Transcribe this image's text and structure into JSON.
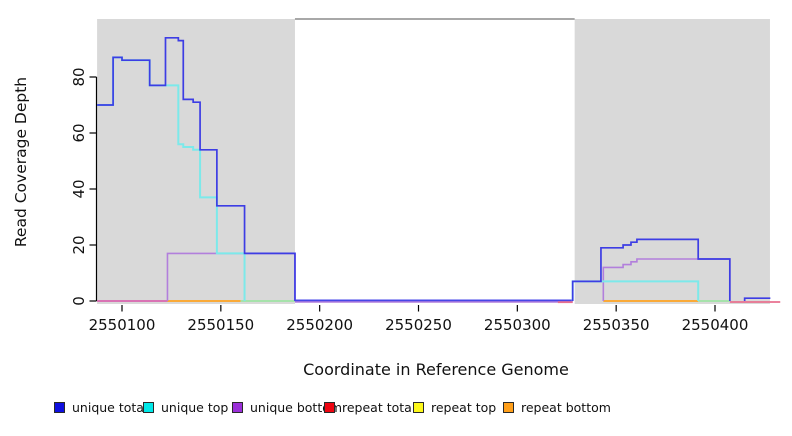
{
  "figure": {
    "xlabel": "Coordinate in Reference Genome",
    "ylabel": "Read Coverage Depth"
  },
  "chart_data": {
    "type": "line",
    "step": true,
    "title": "",
    "xlabel": "Coordinate in Reference Genome",
    "ylabel": "Read Coverage Depth",
    "xlim": [
      2550087.4,
      2550433
    ],
    "ylim": [
      0,
      101
    ],
    "x_ticks": [
      2550100,
      2550150,
      2550200,
      2550250,
      2550300,
      2550350,
      2550400
    ],
    "y_ticks": [
      0,
      20,
      40,
      60,
      80
    ],
    "grid": false,
    "legend_position": "bottom",
    "shaded_regions": [
      {
        "x1": 2550087.4,
        "x2": 2550187.5,
        "color": "#d9d9d9"
      },
      {
        "x1": 2550329.0,
        "x2": 2550427.8,
        "color": "#d9d9d9"
      }
    ],
    "series": [
      {
        "name": "unique total",
        "color": "#3d3de4",
        "segments": [
          [
            2550087.4,
            2550095.5,
            70
          ],
          [
            2550095.5,
            2550100,
            87
          ],
          [
            2550100,
            2550114,
            86
          ],
          [
            2550114,
            2550122,
            77
          ],
          [
            2550122,
            2550128.5,
            94
          ],
          [
            2550128.5,
            2550131,
            93
          ],
          [
            2550131,
            2550136,
            72
          ],
          [
            2550136,
            2550139.5,
            71
          ],
          [
            2550139.5,
            2550148,
            54
          ],
          [
            2550148,
            2550162,
            34
          ],
          [
            2550162,
            2550187.5,
            17
          ],
          [
            2550187.5,
            2550328,
            0
          ],
          [
            2550328,
            2550342.3,
            7
          ],
          [
            2550342.3,
            2550353.5,
            19
          ],
          [
            2550353.5,
            2550357.5,
            20
          ],
          [
            2550357.5,
            2550360.5,
            21
          ],
          [
            2550360.5,
            2550391.5,
            22
          ],
          [
            2550391.5,
            2550407.5,
            15
          ],
          [
            2550407.5,
            2550415,
            0
          ],
          [
            2550415,
            2550428,
            1
          ]
        ]
      },
      {
        "name": "unique top",
        "color": "#7ce9ea",
        "segments": [
          [
            2550087.4,
            2550095.5,
            70
          ],
          [
            2550095.5,
            2550100,
            87
          ],
          [
            2550100,
            2550114,
            86
          ],
          [
            2550114,
            2550128.5,
            77
          ],
          [
            2550128.5,
            2550131,
            56
          ],
          [
            2550131,
            2550136,
            55
          ],
          [
            2550136,
            2550139.5,
            54
          ],
          [
            2550139.5,
            2550148,
            37
          ],
          [
            2550148,
            2550162,
            17
          ],
          [
            2550162,
            2550328,
            0
          ],
          [
            2550328,
            2550391.5,
            7
          ],
          [
            2550391.5,
            2550433,
            0
          ]
        ]
      },
      {
        "name": "unique bottom",
        "color": "#b27fdc",
        "segments": [
          [
            2550087.4,
            2550123,
            0
          ],
          [
            2550123,
            2550187.5,
            17
          ],
          [
            2550187.5,
            2550343.5,
            0
          ],
          [
            2550343.5,
            2550353.5,
            12
          ],
          [
            2550353.5,
            2550357.5,
            13
          ],
          [
            2550357.5,
            2550360.5,
            14
          ],
          [
            2550360.5,
            2550407.5,
            15
          ],
          [
            2550407.5,
            2550433,
            0
          ]
        ]
      },
      {
        "name": "repeat total",
        "color": "#e8708f",
        "segments": [
          [
            2550087.4,
            2550433,
            0
          ]
        ]
      },
      {
        "name": "repeat top",
        "color": "#fdf81a",
        "segments": [
          [
            2550087.4,
            2550433,
            0
          ]
        ]
      },
      {
        "name": "repeat bottom",
        "color": "#ffa321",
        "segments": [
          [
            2550087.4,
            2550433,
            0
          ]
        ]
      }
    ],
    "baseline_overlays": [
      {
        "x1": 2550087.4,
        "x2": 2550123,
        "color": "#d964ae",
        "dy": 0
      },
      {
        "x1": 2550123,
        "x2": 2550160,
        "color": "#ffa321",
        "dy": 0
      },
      {
        "x1": 2550160,
        "x2": 2550187.5,
        "color": "#9fe3a4",
        "dy": 0
      },
      {
        "x1": 2550187.5,
        "x2": 2550328,
        "color": "#b27fdc",
        "dy": 0.9
      },
      {
        "x1": 2550187.5,
        "x2": 2550328,
        "color": "#4646e8",
        "dy": -0.6
      },
      {
        "x1": 2550320.5,
        "x2": 2550328,
        "color": "#e8708f",
        "dy": 1.2
      },
      {
        "x1": 2550343.5,
        "x2": 2550391.5,
        "color": "#ffa321",
        "dy": 0
      },
      {
        "x1": 2550391.5,
        "x2": 2550407.5,
        "color": "#9fe3a4",
        "dy": 0
      },
      {
        "x1": 2550407.5,
        "x2": 2550433,
        "color": "#e8708f",
        "dy": 1.0
      }
    ]
  },
  "legend": {
    "items": [
      {
        "label": "unique total",
        "fill": "#0f10e0"
      },
      {
        "label": "unique top",
        "fill": "#00e8e8"
      },
      {
        "label": "unique bottom",
        "fill": "#9b30d9"
      },
      {
        "label": "repeat total",
        "fill": "#ee0511"
      },
      {
        "label": "repeat top",
        "fill": "#fdf81a"
      },
      {
        "label": "repeat bottom",
        "fill": "#ff9f1a"
      }
    ]
  }
}
